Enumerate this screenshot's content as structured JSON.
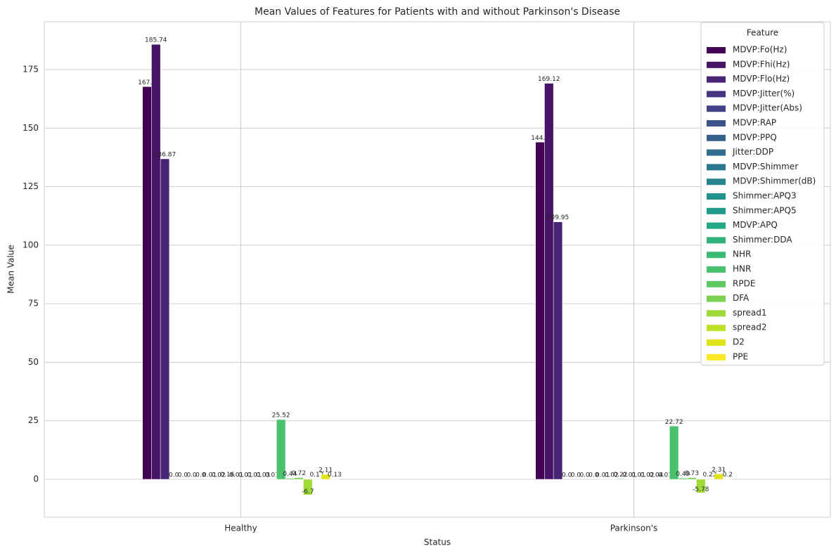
{
  "chart_data": {
    "type": "bar",
    "title": "Mean Values of Features for Patients with and without Parkinson's Disease",
    "x_label": "Status",
    "y_label": "Mean Value",
    "legend_title": "Feature",
    "legend_position": "upper right",
    "grid": true,
    "categories": [
      "Healthy",
      "Parkinson's"
    ],
    "ylim": [
      -16.2,
      195.4
    ],
    "yticks": [
      0,
      25,
      50,
      75,
      100,
      125,
      150,
      175
    ],
    "series": [
      {
        "name": "MDVP:Fo(Hz)",
        "color": "#440154",
        "values": [
          167.7,
          144.0
        ],
        "value_labels": [
          "167.7",
          "144.0"
        ]
      },
      {
        "name": "MDVP:Fhi(Hz)",
        "color": "#471365",
        "values": [
          185.74,
          169.12
        ]
      },
      {
        "name": "MDVP:Flo(Hz)",
        "color": "#482475",
        "values": [
          136.87,
          109.95
        ]
      },
      {
        "name": "MDVP:Jitter(%)",
        "color": "#463480",
        "values": [
          0,
          0
        ],
        "value_labels": [
          "0.0",
          "0.0"
        ]
      },
      {
        "name": "MDVP:Jitter(Abs)",
        "color": "#414487",
        "values": [
          0,
          0
        ],
        "value_labels": [
          "0.0",
          "0.0"
        ]
      },
      {
        "name": "MDVP:RAP",
        "color": "#3b528b",
        "values": [
          0,
          0
        ],
        "value_labels": [
          "0.0",
          "0.0"
        ]
      },
      {
        "name": "MDVP:PPQ",
        "color": "#355f8d",
        "values": [
          0,
          0
        ],
        "value_labels": [
          "0.0",
          "0.0"
        ]
      },
      {
        "name": "Jitter:DDP",
        "color": "#2f6c8e",
        "values": [
          0.01,
          0.01
        ]
      },
      {
        "name": "MDVP:Shimmer",
        "color": "#2a788e",
        "values": [
          0.02,
          0.02
        ]
      },
      {
        "name": "MDVP:Shimmer(dB)",
        "color": "#25848e",
        "values": [
          0.16,
          0.22
        ]
      },
      {
        "name": "Shimmer:APQ3",
        "color": "#21918c",
        "values": [
          0.01,
          0.01
        ]
      },
      {
        "name": "Shimmer:APQ5",
        "color": "#1e9c89",
        "values": [
          0.01,
          0.01
        ]
      },
      {
        "name": "MDVP:APQ",
        "color": "#22a884",
        "values": [
          0.01,
          0.02
        ]
      },
      {
        "name": "Shimmer:DDA",
        "color": "#2fb47c",
        "values": [
          0.03,
          0.04
        ]
      },
      {
        "name": "NHR",
        "color": "#3dbb74",
        "values": [
          0.01,
          0.01
        ]
      },
      {
        "name": "HNR",
        "color": "#4ac16d",
        "values": [
          25.52,
          22.72
        ]
      },
      {
        "name": "RPDE",
        "color": "#5ec962",
        "values": [
          0.44,
          0.49
        ]
      },
      {
        "name": "DFA",
        "color": "#7ad151",
        "values": [
          0.72,
          0.73
        ]
      },
      {
        "name": "spread1",
        "color": "#a0da39",
        "values": [
          -6.7,
          -5.78
        ]
      },
      {
        "name": "spread2",
        "color": "#bddf26",
        "values": [
          0.17,
          0.22
        ]
      },
      {
        "name": "D2",
        "color": "#dfe318",
        "values": [
          2.11,
          2.31
        ]
      },
      {
        "name": "PPE",
        "color": "#fde725",
        "values": [
          0.13,
          0.2
        ]
      }
    ]
  }
}
